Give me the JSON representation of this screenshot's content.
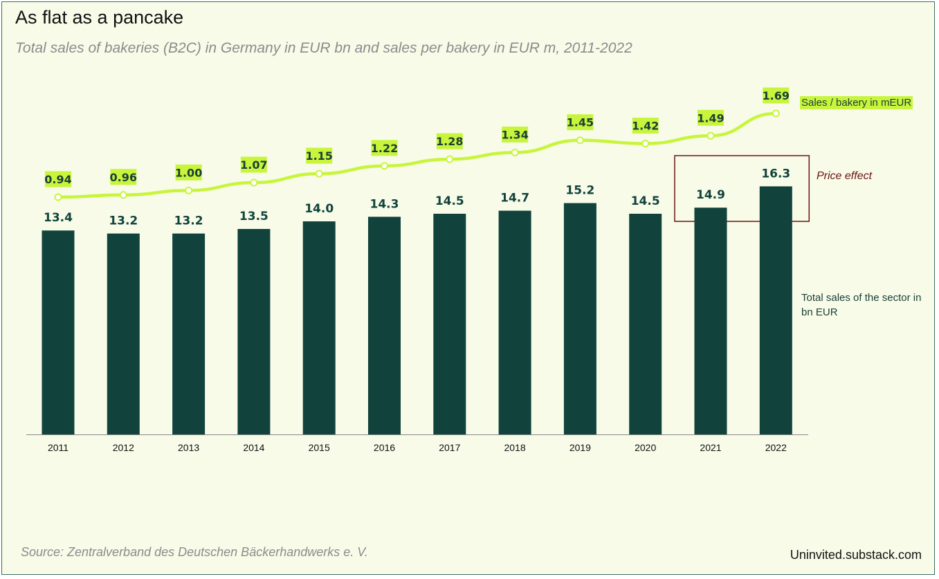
{
  "title": "As flat as a pancake",
  "subtitle": "Total sales of bakeries (B2C) in Germany in EUR bn and sales per bakery in EUR m, 2011-2022",
  "source": "Source: Zentralverband des Deutschen Bäckerhandwerks e. V.",
  "brand": "Uninvited.substack.com",
  "annotation": "Price effect",
  "colors": {
    "bar": "#11433c",
    "line": "#c8f53c",
    "background": "#f7fbe8",
    "annotation": "#6b1313"
  },
  "chart_data": {
    "type": "bar+line",
    "categories": [
      "2011",
      "2012",
      "2013",
      "2014",
      "2015",
      "2016",
      "2017",
      "2018",
      "2019",
      "2020",
      "2021",
      "2022"
    ],
    "series": [
      {
        "name": "Total sales of the sector in bn EUR",
        "type": "bar",
        "values": [
          13.4,
          13.2,
          13.2,
          13.5,
          14.0,
          14.3,
          14.5,
          14.7,
          15.2,
          14.5,
          14.9,
          16.3
        ],
        "labels": [
          "13.4",
          "13.2",
          "13.2",
          "13.5",
          "14.0",
          "14.3",
          "14.5",
          "14.7",
          "15.2",
          "14.5",
          "14.9",
          "16.3"
        ]
      },
      {
        "name": "Sales / bakery in mEUR",
        "type": "line",
        "values": [
          0.94,
          0.96,
          1.0,
          1.07,
          1.15,
          1.22,
          1.28,
          1.34,
          1.45,
          1.42,
          1.49,
          1.69
        ],
        "labels": [
          "0.94",
          "0.96",
          "1.00",
          "1.07",
          "1.15",
          "1.22",
          "1.28",
          "1.34",
          "1.45",
          "1.42",
          "1.49",
          "1.69"
        ]
      }
    ],
    "highlight": {
      "label": "Price effect",
      "categories": [
        "2021",
        "2022"
      ]
    },
    "grid": false,
    "legend": "right, next to each series"
  }
}
